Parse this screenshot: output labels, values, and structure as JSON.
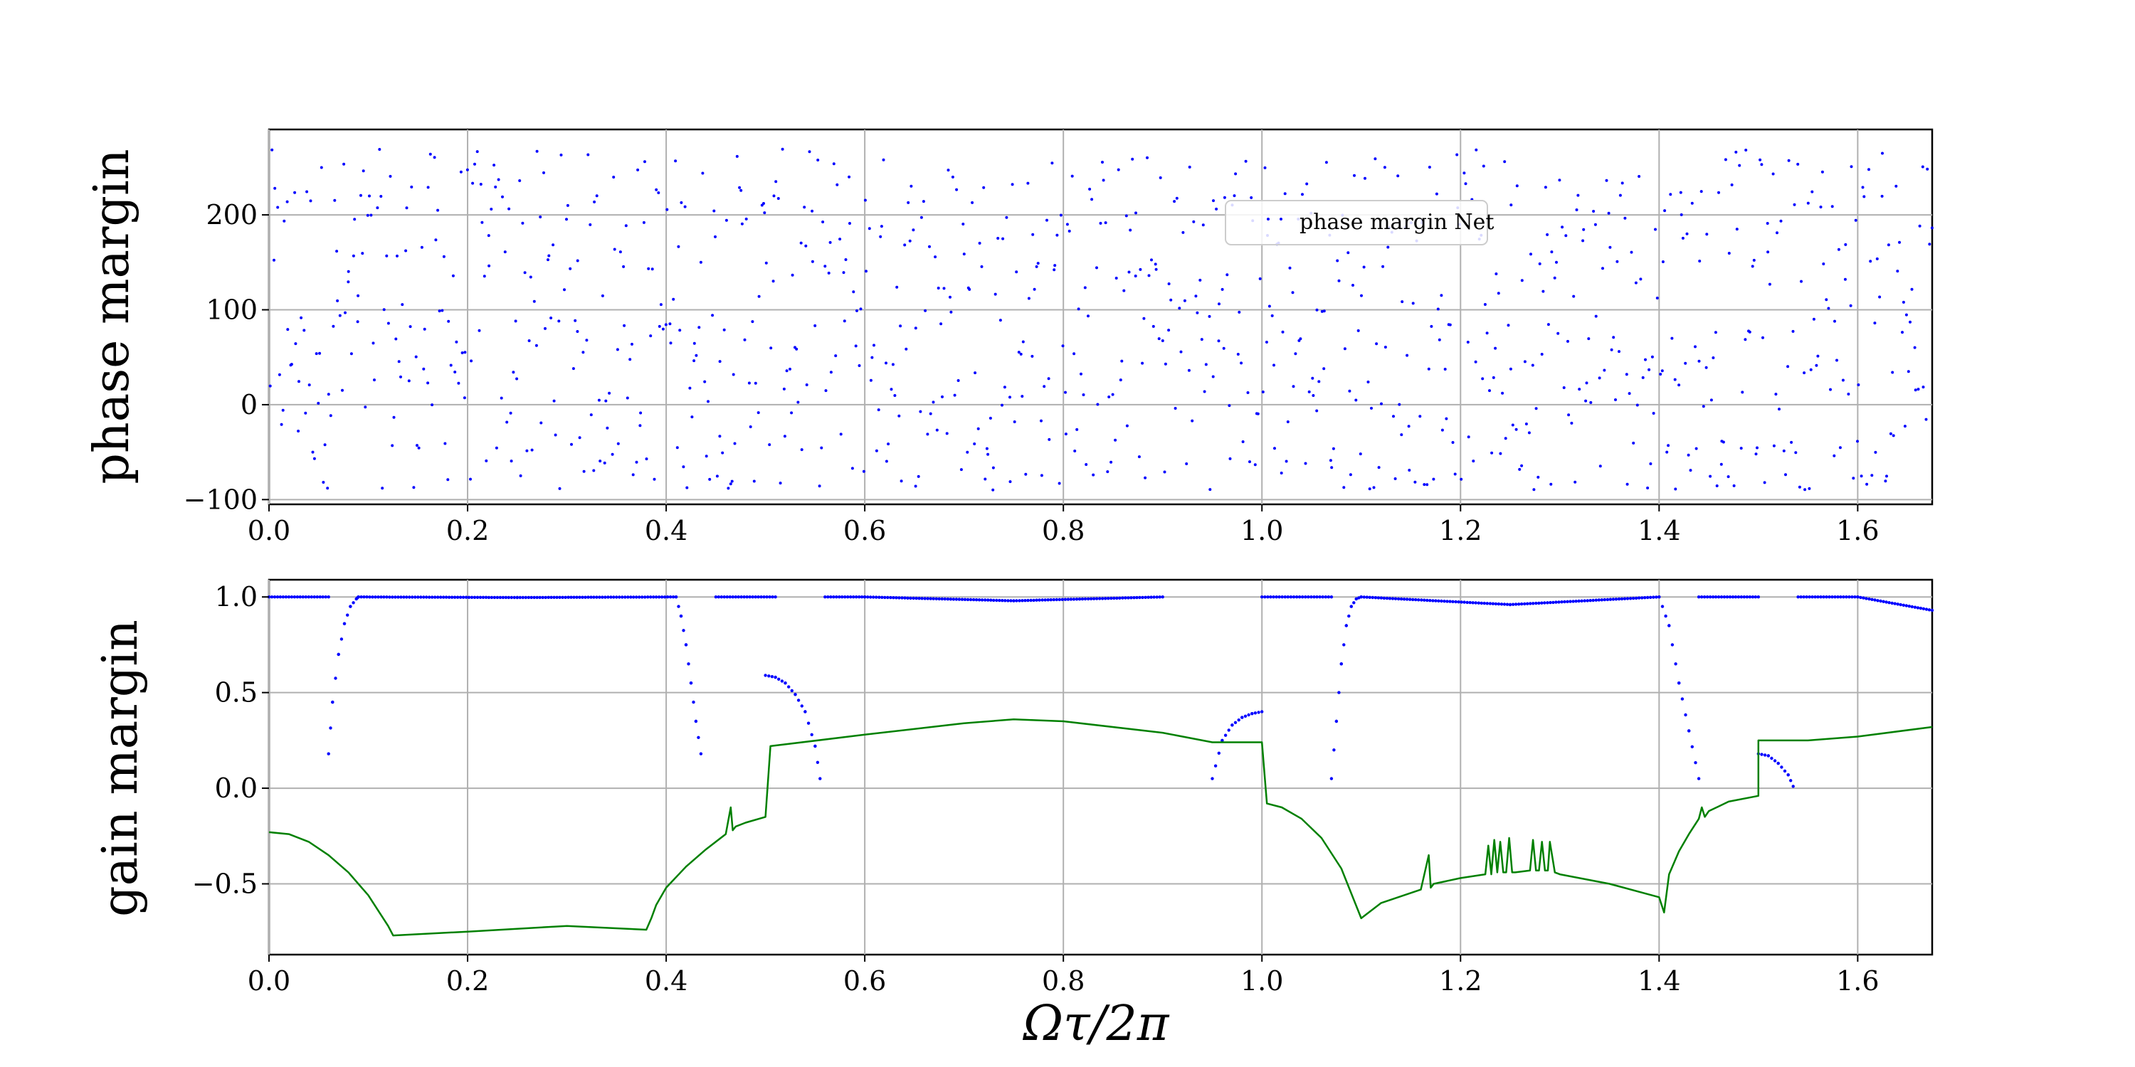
{
  "chart_data": [
    {
      "type": "scatter",
      "ylabel": "phase margin",
      "xlabel": "",
      "xlim": [
        0.0,
        1.675
      ],
      "ylim": [
        -105,
        290
      ],
      "xticks": [
        "0.0",
        "0.2",
        "0.4",
        "0.6",
        "0.8",
        "1.0",
        "1.2",
        "1.4",
        "1.6"
      ],
      "yticks": [
        "−100",
        "0",
        "100",
        "200"
      ],
      "ytick_values": [
        -100,
        0,
        100,
        200
      ],
      "xtick_values": [
        0.0,
        0.2,
        0.4,
        0.6,
        0.8,
        1.0,
        1.2,
        1.4,
        1.6
      ],
      "grid": true,
      "legend": {
        "position": "upper-center",
        "entries": [
          "phase margin Net"
        ]
      },
      "series": [
        {
          "name": "phase margin Net",
          "color": "#0000ff",
          "marker": "point",
          "x_range": [
            0.0,
            1.675
          ],
          "y_range": [
            -90,
            270
          ],
          "point_count": 900,
          "distribution": "scattered, approximately uniform over the x range and y range"
        }
      ]
    },
    {
      "type": "line",
      "ylabel": "gain margin",
      "xlabel": "Ωτ/2π",
      "xlim": [
        0.0,
        1.675
      ],
      "ylim": [
        -0.87,
        1.09
      ],
      "xticks": [
        "0.0",
        "0.2",
        "0.4",
        "0.6",
        "0.8",
        "1.0",
        "1.2",
        "1.4",
        "1.6"
      ],
      "yticks": [
        "−0.5",
        "0.0",
        "0.5",
        "1.0"
      ],
      "ytick_values": [
        -0.5,
        0.0,
        0.5,
        1.0
      ],
      "xtick_values": [
        0.0,
        0.2,
        0.4,
        0.6,
        0.8,
        1.0,
        1.2,
        1.4,
        1.6
      ],
      "grid": true,
      "series": [
        {
          "color": "#0000ff",
          "style": "dots",
          "segments": [
            {
              "x": [
                0.0,
                0.06
              ],
              "y": [
                1.0,
                1.0
              ]
            },
            {
              "x": [
                0.06,
                0.064,
                0.07,
                0.076,
                0.082,
                0.088,
                0.09
              ],
              "y": [
                0.18,
                0.45,
                0.7,
                0.86,
                0.95,
                0.99,
                1.0
              ]
            },
            {
              "x": [
                0.09,
                0.25,
                0.41
              ],
              "y": [
                1.0,
                0.997,
                1.0
              ]
            },
            {
              "x": [
                0.41,
                0.415,
                0.42,
                0.425,
                0.43,
                0.435
              ],
              "y": [
                1.0,
                0.9,
                0.75,
                0.55,
                0.35,
                0.18
              ]
            },
            {
              "x": [
                0.45,
                0.51
              ],
              "y": [
                1.0,
                1.0
              ]
            },
            {
              "x": [
                0.5,
                0.51,
                0.52,
                0.53,
                0.54,
                0.55,
                0.555
              ],
              "y": [
                0.59,
                0.58,
                0.55,
                0.49,
                0.4,
                0.22,
                0.05
              ]
            },
            {
              "x": [
                0.56,
                0.6
              ],
              "y": [
                1.0,
                1.0
              ]
            },
            {
              "x": [
                0.6,
                0.75,
                0.9
              ],
              "y": [
                1.0,
                0.98,
                1.0
              ]
            },
            {
              "x": [
                0.95,
                0.96,
                0.97,
                0.98,
                0.99,
                1.0
              ],
              "y": [
                0.05,
                0.25,
                0.33,
                0.37,
                0.39,
                0.4
              ]
            },
            {
              "x": [
                1.0,
                1.07
              ],
              "y": [
                1.0,
                1.0
              ]
            },
            {
              "x": [
                1.07,
                1.075,
                1.08,
                1.085,
                1.09,
                1.095,
                1.1
              ],
              "y": [
                0.05,
                0.35,
                0.65,
                0.85,
                0.95,
                0.99,
                1.0
              ]
            },
            {
              "x": [
                1.1,
                1.25,
                1.4
              ],
              "y": [
                1.0,
                0.96,
                1.0
              ]
            },
            {
              "x": [
                1.4,
                1.41,
                1.42,
                1.43,
                1.44
              ],
              "y": [
                1.0,
                0.85,
                0.55,
                0.3,
                0.05
              ]
            },
            {
              "x": [
                1.44,
                1.5
              ],
              "y": [
                1.0,
                1.0
              ]
            },
            {
              "x": [
                1.5,
                1.51,
                1.52,
                1.53,
                1.535
              ],
              "y": [
                0.18,
                0.17,
                0.13,
                0.07,
                0.01
              ]
            },
            {
              "x": [
                1.54,
                1.6,
                1.675
              ],
              "y": [
                1.0,
                1.0,
                0.93
              ]
            }
          ]
        },
        {
          "color": "#008000",
          "style": "line",
          "x": [
            0.0,
            0.02,
            0.04,
            0.06,
            0.08,
            0.1,
            0.12,
            0.125,
            0.2,
            0.3,
            0.38,
            0.385,
            0.39,
            0.4,
            0.42,
            0.44,
            0.46,
            0.465,
            0.467,
            0.47,
            0.48,
            0.5,
            0.505,
            0.6,
            0.7,
            0.75,
            0.8,
            0.9,
            0.95,
            1.0,
            1.005,
            1.02,
            1.04,
            1.06,
            1.08,
            1.1,
            1.12,
            1.16,
            1.168,
            1.17,
            1.173,
            1.2,
            1.225,
            1.228,
            1.231,
            1.234,
            1.237,
            1.24,
            1.243,
            1.246,
            1.249,
            1.252,
            1.255,
            1.27,
            1.273,
            1.276,
            1.279,
            1.282,
            1.285,
            1.288,
            1.29,
            1.295,
            1.3,
            1.35,
            1.4,
            1.405,
            1.41,
            1.42,
            1.43,
            1.44,
            1.443,
            1.446,
            1.45,
            1.47,
            1.5,
            1.5,
            1.55,
            1.6,
            1.675
          ],
          "y": [
            -0.23,
            -0.24,
            -0.28,
            -0.35,
            -0.44,
            -0.56,
            -0.72,
            -0.77,
            -0.75,
            -0.72,
            -0.74,
            -0.68,
            -0.61,
            -0.52,
            -0.41,
            -0.32,
            -0.24,
            -0.1,
            -0.22,
            -0.2,
            -0.18,
            -0.15,
            0.22,
            0.28,
            0.34,
            0.36,
            0.35,
            0.29,
            0.24,
            0.24,
            -0.08,
            -0.1,
            -0.16,
            -0.26,
            -0.42,
            -0.68,
            -0.6,
            -0.53,
            -0.35,
            -0.52,
            -0.5,
            -0.47,
            -0.45,
            -0.3,
            -0.45,
            -0.27,
            -0.44,
            -0.28,
            -0.44,
            -0.44,
            -0.26,
            -0.44,
            -0.44,
            -0.43,
            -0.27,
            -0.43,
            -0.43,
            -0.28,
            -0.43,
            -0.43,
            -0.28,
            -0.44,
            -0.45,
            -0.5,
            -0.57,
            -0.65,
            -0.45,
            -0.33,
            -0.24,
            -0.16,
            -0.1,
            -0.15,
            -0.12,
            -0.07,
            -0.04,
            0.25,
            0.25,
            0.27,
            0.32
          ]
        }
      ]
    }
  ]
}
